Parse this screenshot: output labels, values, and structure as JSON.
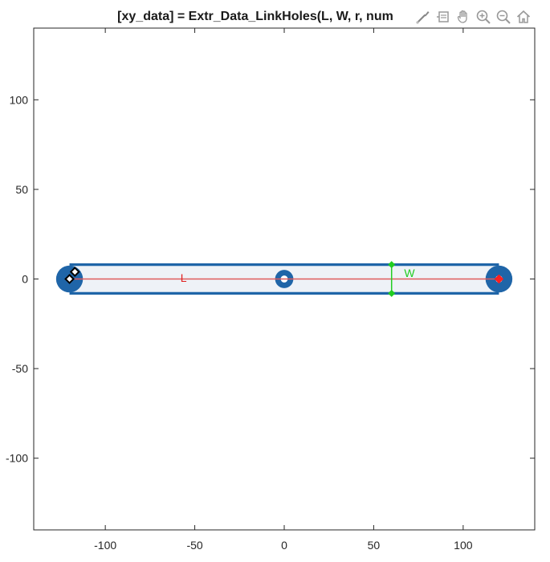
{
  "chart_data": {
    "type": "line",
    "title": "[xy_data] = Extr_Data_LinkHoles(L, W, r, num",
    "xlabel": "",
    "ylabel": "",
    "xlim": [
      -140,
      140
    ],
    "ylim": [
      -140,
      140
    ],
    "xticks": [
      -100,
      -50,
      0,
      50,
      100
    ],
    "yticks": [
      -100,
      -50,
      0,
      50,
      100
    ],
    "grid": false,
    "link": {
      "L": 240,
      "W": 16,
      "center_line_y": 0,
      "end_left_x": -120,
      "end_right_x": 120,
      "hole_centers_x": [
        -120,
        0,
        120
      ],
      "hole_outer_radius": 6,
      "hole_inner_radius": 2.2
    },
    "series": [
      {
        "name": "link outline",
        "color": "#1f65a8"
      },
      {
        "name": "length line",
        "color": "#e05a5a"
      },
      {
        "name": "width dimension",
        "color": "#22cc22"
      }
    ],
    "annotations": [
      {
        "text": "L",
        "x": -58,
        "y": 0.6,
        "color": "#e02020"
      },
      {
        "text": "W",
        "x": 67,
        "y": 3.3,
        "color": "#22cc22"
      }
    ],
    "width_marker_x": 60,
    "markers": [
      {
        "type": "diamond",
        "x": -120,
        "y": 0,
        "color": "#000000"
      },
      {
        "type": "diamond",
        "x": -117,
        "y": 4,
        "color": "#000000"
      },
      {
        "type": "diamond",
        "x": 120,
        "y": 0,
        "color": "#ff2020"
      }
    ]
  },
  "toolbar": {
    "buttons": [
      {
        "name": "brush-icon"
      },
      {
        "name": "data-cursor-icon"
      },
      {
        "name": "pan-hand-icon"
      },
      {
        "name": "zoom-in-icon"
      },
      {
        "name": "zoom-out-icon"
      },
      {
        "name": "home-icon"
      }
    ]
  }
}
